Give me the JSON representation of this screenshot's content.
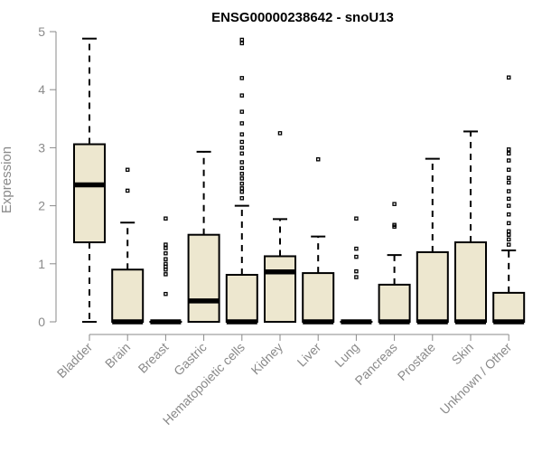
{
  "chart_data": {
    "type": "boxplot",
    "title": "ENSG00000238642 - snoU13",
    "xlabel": "",
    "ylabel": "Expression",
    "ylim": [
      0,
      5
    ],
    "yticks": [
      0,
      1,
      2,
      3,
      4,
      5
    ],
    "grid": false,
    "box_fill": "#ede7cf",
    "categories": [
      "Bladder",
      "Brain",
      "Breast",
      "Gastric",
      "Hematopoietic cells",
      "Kidney",
      "Liver",
      "Lung",
      "Pancreas",
      "Prostate",
      "Skin",
      "Unknown / Other"
    ],
    "boxes": [
      {
        "category": "Bladder",
        "whisker_low": 0.0,
        "q1": 1.37,
        "median": 2.36,
        "q3": 3.06,
        "whisker_high": 4.88,
        "outliers": []
      },
      {
        "category": "Brain",
        "whisker_low": 0.0,
        "q1": 0.0,
        "median": 0.0,
        "q3": 0.9,
        "whisker_high": 1.71,
        "outliers": [
          2.26,
          2.62
        ]
      },
      {
        "category": "Breast",
        "whisker_low": 0.0,
        "q1": 0.0,
        "median": 0.0,
        "q3": 0.0,
        "whisker_high": 0.0,
        "outliers": [
          0.48,
          0.82,
          0.9,
          0.95,
          1.0,
          1.08,
          1.18,
          1.27,
          1.33,
          1.78
        ]
      },
      {
        "category": "Gastric",
        "whisker_low": 0.0,
        "q1": 0.0,
        "median": 0.36,
        "q3": 1.5,
        "whisker_high": 2.93,
        "outliers": []
      },
      {
        "category": "Hematopoietic cells",
        "whisker_low": 0.0,
        "q1": 0.0,
        "median": 0.0,
        "q3": 0.81,
        "whisker_high": 2.0,
        "outliers": [
          2.13,
          2.24,
          2.3,
          2.38,
          2.47,
          2.55,
          2.65,
          2.75,
          2.9,
          3.0,
          3.1,
          3.23,
          3.42,
          3.62,
          3.9,
          4.2,
          4.8,
          4.86
        ]
      },
      {
        "category": "Kidney",
        "whisker_low": 0.0,
        "q1": 0.0,
        "median": 0.86,
        "q3": 1.13,
        "whisker_high": 1.77,
        "outliers": [
          3.25
        ]
      },
      {
        "category": "Liver",
        "whisker_low": 0.0,
        "q1": 0.0,
        "median": 0.0,
        "q3": 0.84,
        "whisker_high": 1.47,
        "outliers": [
          2.8
        ]
      },
      {
        "category": "Lung",
        "whisker_low": 0.0,
        "q1": 0.0,
        "median": 0.0,
        "q3": 0.0,
        "whisker_high": 0.0,
        "outliers": [
          0.77,
          0.87,
          1.12,
          1.26,
          1.78
        ]
      },
      {
        "category": "Pancreas",
        "whisker_low": 0.0,
        "q1": 0.0,
        "median": 0.0,
        "q3": 0.64,
        "whisker_high": 1.15,
        "outliers": [
          1.64,
          1.67,
          2.03
        ]
      },
      {
        "category": "Prostate",
        "whisker_low": 0.0,
        "q1": 0.0,
        "median": 0.0,
        "q3": 1.2,
        "whisker_high": 2.81,
        "outliers": []
      },
      {
        "category": "Skin",
        "whisker_low": 0.0,
        "q1": 0.0,
        "median": 0.0,
        "q3": 1.37,
        "whisker_high": 3.28,
        "outliers": []
      },
      {
        "category": "Unknown / Other",
        "whisker_low": 0.0,
        "q1": 0.0,
        "median": 0.0,
        "q3": 0.5,
        "whisker_high": 1.23,
        "outliers": [
          1.33,
          1.42,
          1.5,
          1.56,
          1.7,
          1.85,
          2.0,
          2.12,
          2.25,
          2.4,
          2.48,
          2.62,
          2.78,
          2.9,
          2.97,
          4.21
        ]
      }
    ]
  }
}
